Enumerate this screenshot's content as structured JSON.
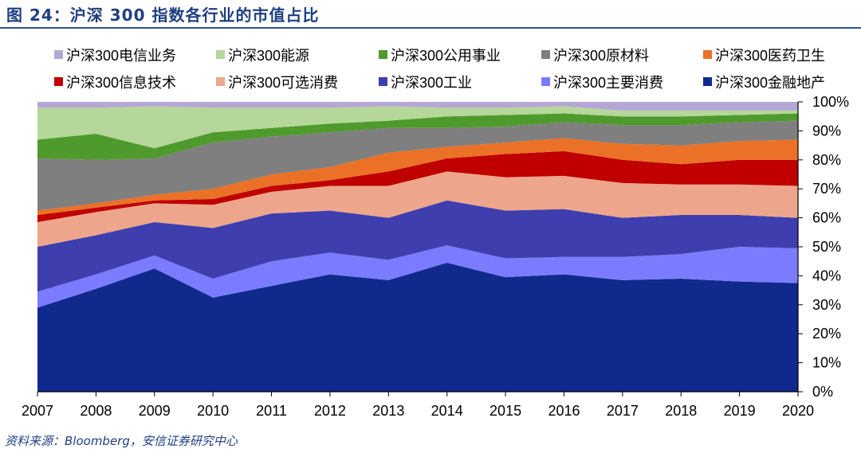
{
  "title": "图 24：沪深 300 指数各行业的市值占比",
  "source": "资料来源：Bloomberg，安信证券研究中心",
  "chart_data": {
    "type": "area",
    "stacked": true,
    "x": [
      "2007",
      "2008",
      "2009",
      "2010",
      "2011",
      "2012",
      "2013",
      "2014",
      "2015",
      "2016",
      "2017",
      "2018",
      "2019",
      "2020"
    ],
    "y_tick_labels": [
      "0%",
      "10%",
      "20%",
      "30%",
      "40%",
      "50%",
      "60%",
      "70%",
      "80%",
      "90%",
      "100%"
    ],
    "ylim": [
      0,
      100
    ],
    "legend_position": "top",
    "series": [
      {
        "name": "沪深300金融地产",
        "color": "#0f2a8c",
        "values": [
          29,
          35.5,
          42.5,
          32.5,
          36.5,
          40.5,
          38.5,
          44.5,
          39.5,
          40.5,
          38.5,
          39,
          38,
          37.5
        ]
      },
      {
        "name": "沪深300主要消费",
        "color": "#7b7bff",
        "values": [
          5.5,
          5,
          4.5,
          6.5,
          8.5,
          7.5,
          7,
          6,
          6.5,
          6,
          8,
          8.5,
          12,
          12
        ]
      },
      {
        "name": "沪深300工业",
        "color": "#3e3eae",
        "values": [
          15.5,
          13.5,
          11.5,
          17.5,
          16.5,
          14.5,
          14.5,
          15.5,
          16.5,
          16.5,
          13.5,
          13.5,
          11,
          10.5
        ]
      },
      {
        "name": "沪深300可选消费",
        "color": "#eda68b",
        "values": [
          8.5,
          8,
          6.5,
          8,
          7.5,
          8.5,
          11,
          10,
          11.5,
          11.5,
          12,
          10.5,
          10.5,
          11
        ]
      },
      {
        "name": "沪深300信息技术",
        "color": "#c00000",
        "values": [
          2.5,
          1.5,
          1,
          2,
          2,
          2,
          5,
          4.5,
          8,
          8.5,
          8,
          7,
          8.5,
          9
        ]
      },
      {
        "name": "沪深300医药卫生",
        "color": "#ea7126",
        "values": [
          1.5,
          1.5,
          2,
          3.5,
          4,
          4.5,
          6.5,
          4,
          4,
          4.5,
          5.5,
          6.5,
          6.5,
          7
        ]
      },
      {
        "name": "沪深300原材料",
        "color": "#7f7f7f",
        "values": [
          18,
          15,
          12.5,
          16,
          13,
          12,
          8.5,
          6.5,
          5.5,
          5.5,
          6.5,
          7,
          6.5,
          6.5
        ]
      },
      {
        "name": "沪深300公用事业",
        "color": "#4f9a2c",
        "values": [
          6.5,
          9,
          3.5,
          3.5,
          3,
          3,
          2.5,
          4,
          4,
          3,
          3,
          3,
          2.5,
          2.5
        ]
      },
      {
        "name": "沪深300能源",
        "color": "#b5d79a",
        "values": [
          11,
          9,
          14.5,
          8.5,
          7,
          5.5,
          5,
          3,
          2.5,
          2.5,
          2,
          2,
          1.5,
          1
        ]
      },
      {
        "name": "沪深300电信业务",
        "color": "#b4a7d6",
        "values": [
          2,
          2,
          1.5,
          2,
          2,
          2,
          1.5,
          2,
          2,
          1.5,
          3,
          3,
          3,
          3
        ]
      }
    ],
    "legend_order": [
      "沪深300电信业务",
      "沪深300能源",
      "沪深300公用事业",
      "沪深300原材料",
      "沪深300医药卫生",
      "沪深300信息技术",
      "沪深300可选消费",
      "沪深300工业",
      "沪深300主要消费",
      "沪深300金融地产"
    ]
  }
}
